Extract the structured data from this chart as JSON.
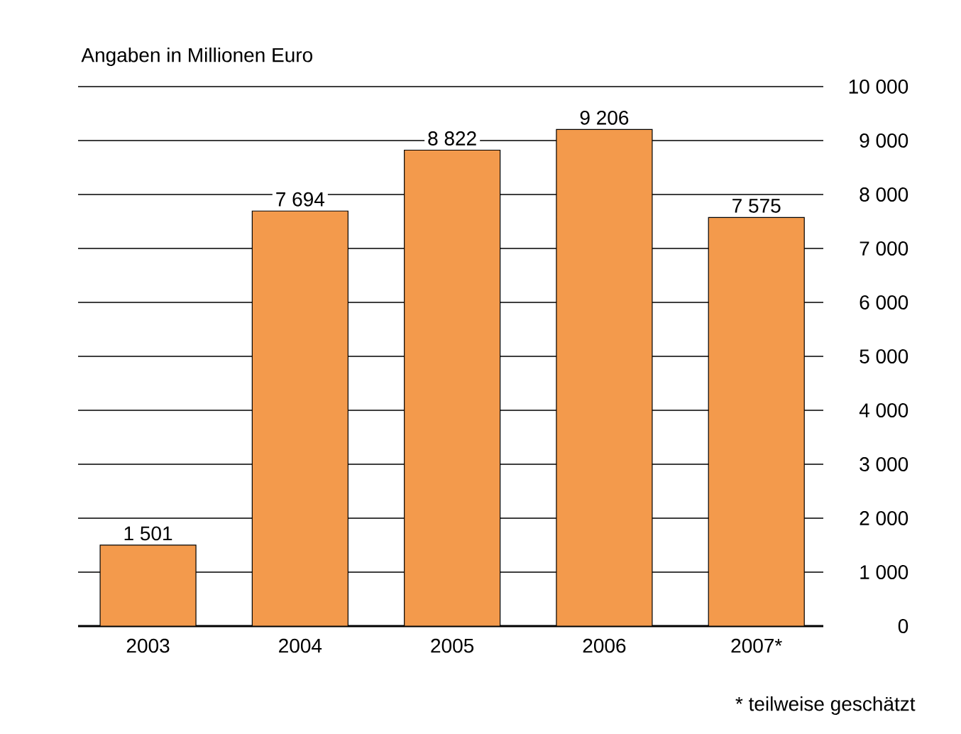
{
  "chart_data": {
    "type": "bar",
    "ylabel": "Angaben in Millionen Euro",
    "categories": [
      "2003",
      "2004",
      "2005",
      "2006",
      "2007*"
    ],
    "values": [
      1501,
      7694,
      8822,
      9206,
      7575
    ],
    "value_labels": [
      "1 501",
      "7 694",
      "8 822",
      "9 206",
      "7 575"
    ],
    "color": "#f39a4c",
    "ylim": [
      0,
      10000
    ],
    "yticks": [
      0,
      {
        "value": 1000,
        "label": "1 000"
      },
      {
        "value": 2000,
        "label": "2 000"
      },
      {
        "value": 3000,
        "label": "3 000"
      },
      {
        "value": 4000,
        "label": "4 000"
      },
      {
        "value": 5000,
        "label": "5 000"
      },
      {
        "value": 6000,
        "label": "6 000"
      },
      {
        "value": 7000,
        "label": "7 000"
      },
      {
        "value": 8000,
        "label": "8 000"
      },
      {
        "value": 9000,
        "label": "9 000"
      },
      {
        "value": 10000,
        "label": "10 000"
      }
    ],
    "grid": "y",
    "annotations": [
      "* teilweise geschätzt"
    ]
  }
}
